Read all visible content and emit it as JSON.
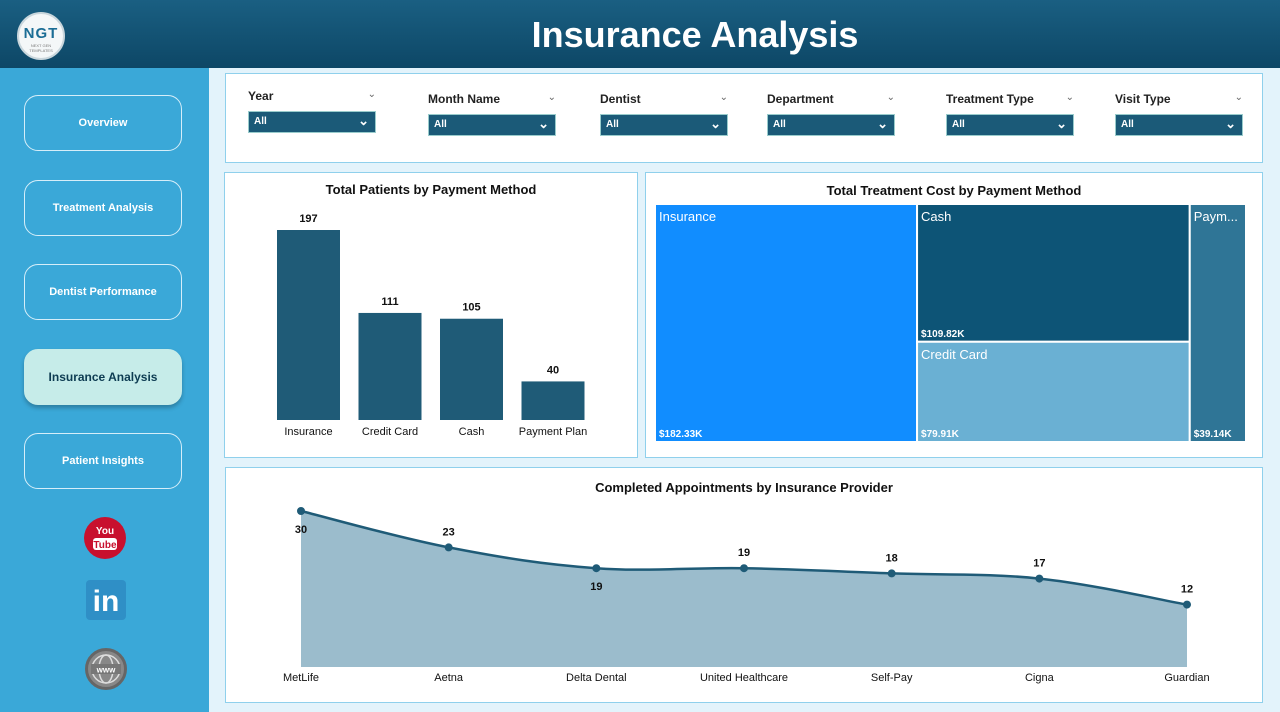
{
  "header": {
    "title": "Insurance Analysis",
    "logo_text": "NGT",
    "logo_subtext": "NEXT GEN TEMPLATES"
  },
  "sidebar": {
    "items": [
      {
        "label": "Overview",
        "active": false
      },
      {
        "label": "Treatment Analysis",
        "active": false
      },
      {
        "label": "Dentist Performance",
        "active": false
      },
      {
        "label": "Insurance Analysis",
        "active": true
      },
      {
        "label": "Patient Insights",
        "active": false
      }
    ],
    "social": [
      {
        "icon": "youtube-icon",
        "text": "You Tube"
      },
      {
        "icon": "linkedin-icon",
        "text": "in"
      },
      {
        "icon": "globe-www-icon",
        "text": "www"
      }
    ]
  },
  "filters": [
    {
      "label": "Year",
      "value": "All"
    },
    {
      "label": "Month Name",
      "value": "All"
    },
    {
      "label": "Dentist",
      "value": "All"
    },
    {
      "label": "Department",
      "value": "All"
    },
    {
      "label": "Treatment Type",
      "value": "All"
    },
    {
      "label": "Visit Type",
      "value": "All"
    }
  ],
  "charts": {
    "patients_title": "Total Patients by Payment Method",
    "cost_title": "Total Treatment Cost by Payment Method",
    "appointments_title": "Completed Appointments by Insurance Provider"
  },
  "colors": {
    "bar": "#1f5b77",
    "area_fill": "#9bbccc",
    "line": "#1f5b77",
    "tree_insurance": "#118dff",
    "tree_cash": "#0d5476",
    "tree_credit": "#6ab0d3",
    "tree_payment": "#2f7596"
  },
  "chart_data": [
    {
      "type": "bar",
      "title": "Total Patients by Payment Method",
      "categories": [
        "Insurance",
        "Credit Card",
        "Cash",
        "Payment Plan"
      ],
      "values": [
        197,
        111,
        105,
        40
      ],
      "ylim": [
        0,
        197
      ]
    },
    {
      "type": "treemap",
      "title": "Total Treatment Cost by Payment Method",
      "items": [
        {
          "name": "Insurance",
          "value": 182.33,
          "label": "$182.33K"
        },
        {
          "name": "Cash",
          "value": 109.82,
          "label": "$109.82K"
        },
        {
          "name": "Credit Card",
          "value": 79.91,
          "label": "$79.91K"
        },
        {
          "name": "Paym...",
          "value": 39.14,
          "label": "$39.14K"
        }
      ]
    },
    {
      "type": "area",
      "title": "Completed Appointments by Insurance Provider",
      "categories": [
        "MetLife",
        "Aetna",
        "Delta Dental",
        "United Healthcare",
        "Self-Pay",
        "Cigna",
        "Guardian"
      ],
      "values": [
        30,
        23,
        19,
        19,
        18,
        17,
        12
      ],
      "ylim": [
        0,
        30
      ]
    }
  ]
}
